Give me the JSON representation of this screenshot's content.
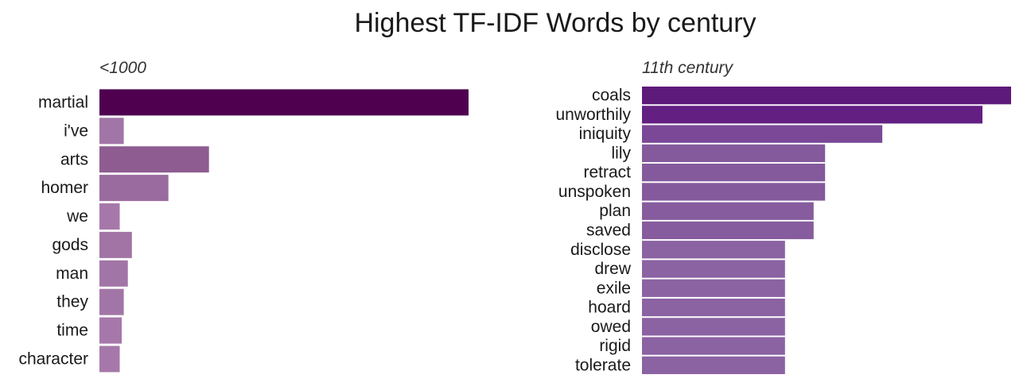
{
  "chart_data": {
    "type": "bar",
    "orientation": "horizontal",
    "title": "Highest TF-IDF Words by century",
    "xlabel": "",
    "ylabel": "",
    "grid": false,
    "legend": "none",
    "panels": [
      {
        "panel_title": "<1000",
        "categories": [
          "martial",
          "i've",
          "arts",
          "homer",
          "we",
          "gods",
          "man",
          "they",
          "time",
          "character"
        ],
        "values": [
          0.0182,
          0.0012,
          0.0054,
          0.0034,
          0.001,
          0.0016,
          0.0014,
          0.0012,
          0.0011,
          0.001
        ],
        "xlim": [
          0,
          0.0182
        ],
        "colors": [
          "#4f0150",
          "#a275a7",
          "#8e5c91",
          "#9a6b9e",
          "#a678aa",
          "#a174a5",
          "#a275a7",
          "#a275a7",
          "#a678aa",
          "#a678aa"
        ]
      },
      {
        "panel_title": "11th century",
        "categories": [
          "coals",
          "unworthily",
          "iniquity",
          "lily",
          "retract",
          "unspoken",
          "plan",
          "saved",
          "disclose",
          "drew",
          "exile",
          "hoard",
          "owed",
          "rigid",
          "tolerate"
        ],
        "values": [
          0.0129,
          0.0119,
          0.0084,
          0.0064,
          0.0064,
          0.0064,
          0.006,
          0.006,
          0.005,
          0.005,
          0.005,
          0.005,
          0.005,
          0.005,
          0.005
        ],
        "xlim": [
          0,
          0.0129
        ],
        "colors": [
          "#5e1a7a",
          "#632082",
          "#7a4897",
          "#845a9c",
          "#845a9c",
          "#845a9c",
          "#875c9e",
          "#875c9e",
          "#8b62a2",
          "#8b62a2",
          "#8b62a2",
          "#8b62a2",
          "#8b62a2",
          "#8b62a2",
          "#8b62a2"
        ]
      }
    ]
  }
}
